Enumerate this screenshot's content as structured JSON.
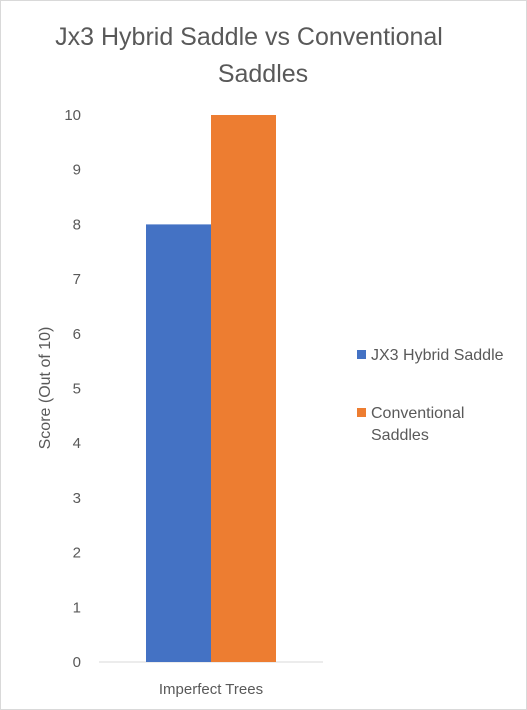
{
  "chart_data": {
    "type": "bar",
    "title_lines": [
      "Jx3 Hybrid Saddle vs Conventional",
      "Saddles"
    ],
    "categories": [
      "Imperfect Trees"
    ],
    "series": [
      {
        "name": "JX3 Hybrid Saddle",
        "legend_lines": [
          "JX3 Hybrid Saddle"
        ],
        "color": "#4472c4",
        "values": [
          8
        ]
      },
      {
        "name": "Conventional Saddles",
        "legend_lines": [
          "Conventional",
          "Saddles"
        ],
        "color": "#ed7d31",
        "values": [
          10
        ]
      }
    ],
    "xlabel": "",
    "ylabel": "Score (Out of 10)",
    "ylim": [
      0,
      10
    ],
    "yticks": [
      0,
      1,
      2,
      3,
      4,
      5,
      6,
      7,
      8,
      9,
      10
    ],
    "grid": false,
    "legend_position": "right",
    "axis_color": "#d9d9d9"
  }
}
